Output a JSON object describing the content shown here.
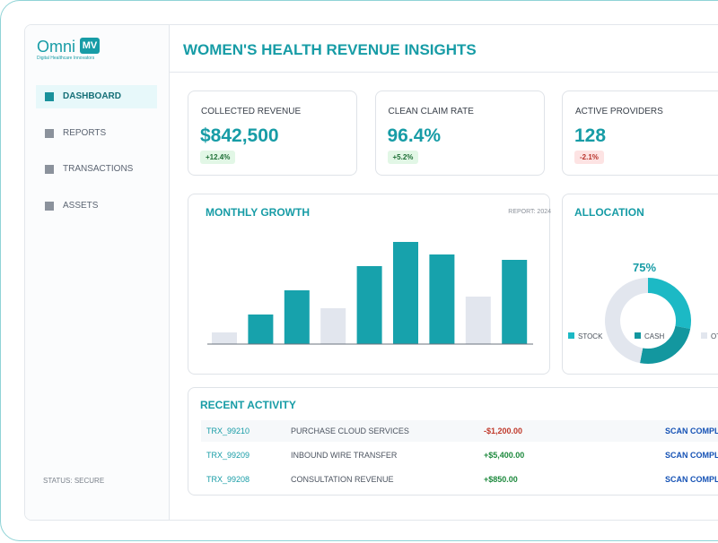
{
  "sidebar": {
    "logo": "Omni",
    "logo_mark": "MV",
    "tagline": "Digital Healthcare Innovators",
    "nav": [
      {
        "label": "DASHBOARD",
        "active": true
      },
      {
        "label": "REPORTS",
        "active": false
      },
      {
        "label": "TRANSACTIONS",
        "active": false
      },
      {
        "label": "ASSETS",
        "active": false
      }
    ],
    "status": "STATUS: SECURE"
  },
  "header": {
    "title": "WOMEN'S HEALTH REVENUE INSIGHTS"
  },
  "kpis": [
    {
      "label": "COLLECTED REVENUE",
      "value": "$842,500",
      "change": "+12.4%",
      "trend": "up"
    },
    {
      "label": "CLEAN CLAIM RATE",
      "value": "96.4%",
      "change": "+5.2%",
      "trend": "up"
    },
    {
      "label": "ACTIVE PROVIDERS",
      "value": "128",
      "change": "-2.1%",
      "trend": "down"
    }
  ],
  "chart_data": [
    {
      "type": "bar",
      "title": "MONTHLY GROWTH",
      "subtitle": "REPORT: 2024",
      "values": [
        13,
        33,
        60,
        40,
        87,
        114,
        100,
        53,
        94
      ],
      "colors": [
        "#e2e6ee",
        "#17a2ac",
        "#17a2ac",
        "#e2e6ee",
        "#17a2ac",
        "#17a2ac",
        "#17a2ac",
        "#e2e6ee",
        "#17a2ac"
      ],
      "ylim": [
        0,
        120
      ]
    },
    {
      "type": "pie",
      "title": "ALLOCATION",
      "center_label": "75%",
      "categories": [
        "STOCK",
        "CASH",
        "OTHER"
      ],
      "values": [
        28,
        25,
        47
      ],
      "colors": [
        "#1cb9c5",
        "#13979f",
        "#e2e6ee"
      ]
    }
  ],
  "activity": {
    "title": "RECENT ACTIVITY",
    "rows": [
      [
        "TRX_99210",
        "PURCHASE CLOUD SERVICES",
        "-$1,200.00",
        "SCAN COMPLETE"
      ],
      [
        "TRX_99209",
        "INBOUND WIRE TRANSFER",
        "+$5,400.00",
        "SCAN COMPLETE"
      ],
      [
        "TRX_99208",
        "CONSULTATION REVENUE",
        "+$850.00",
        "SCAN COMPLETE"
      ]
    ]
  }
}
